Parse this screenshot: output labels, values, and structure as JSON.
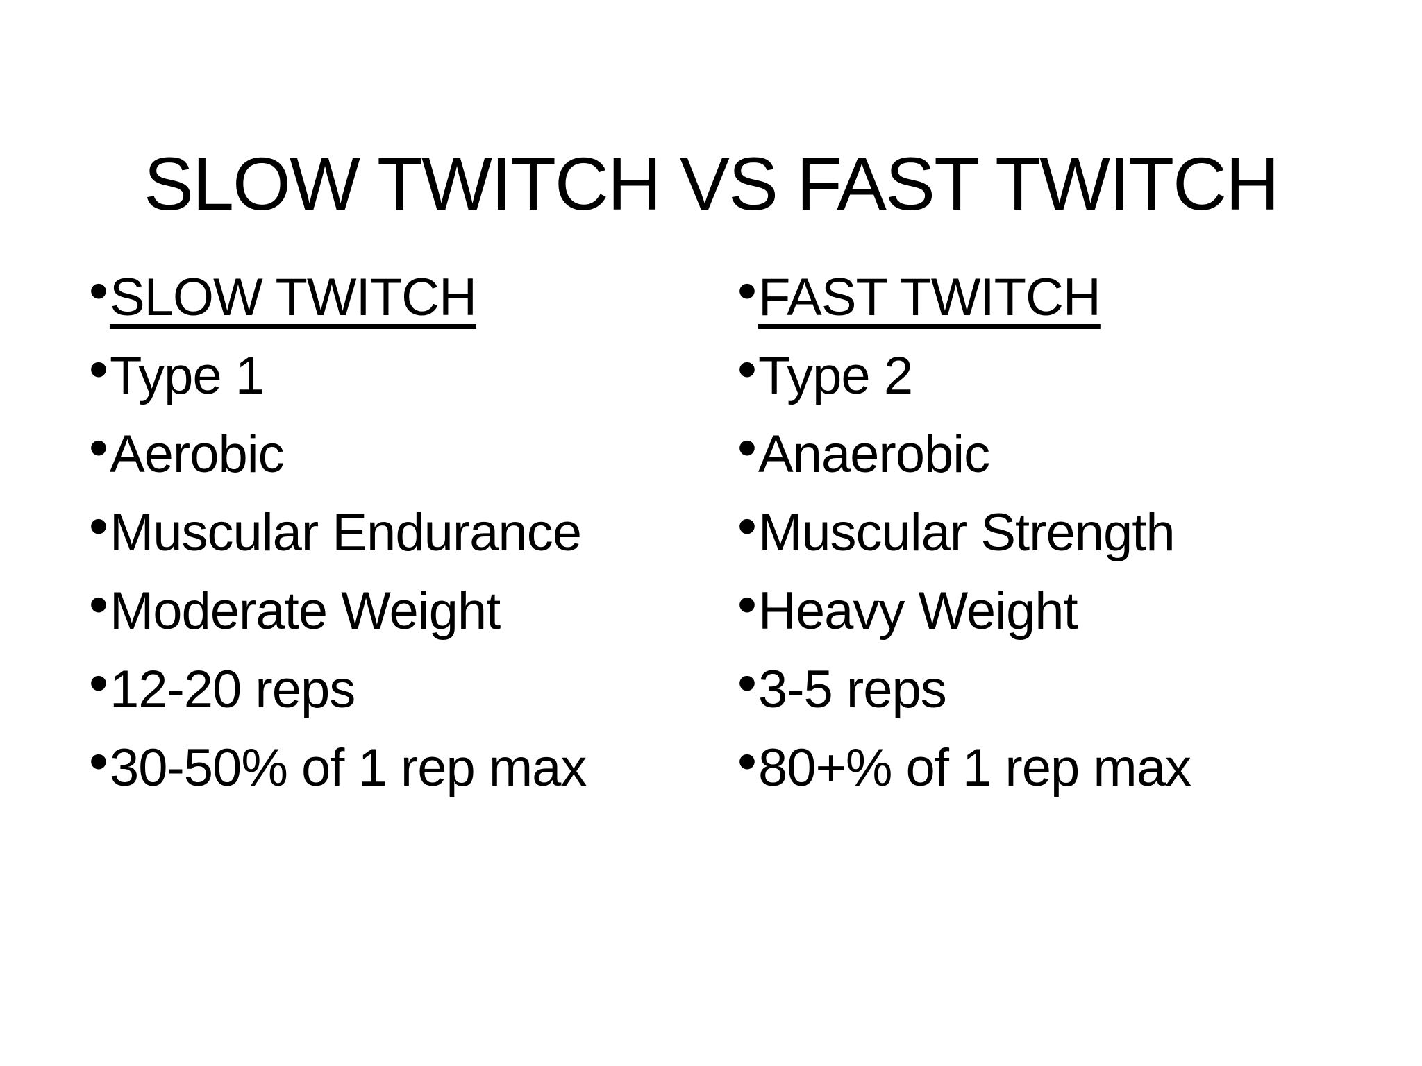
{
  "slide": {
    "title": "SLOW TWITCH VS FAST TWITCH",
    "bullet_char": "•",
    "colors": {
      "background": "#ffffff",
      "text": "#000000"
    },
    "columns": [
      {
        "header": "SLOW TWITCH",
        "items": [
          "Type 1",
          "Aerobic",
          "Muscular Endurance",
          "Moderate Weight",
          "12-20 reps",
          "30-50% of 1 rep max"
        ]
      },
      {
        "header": "FAST TWITCH",
        "items": [
          "Type 2",
          "Anaerobic",
          "Muscular Strength",
          "Heavy Weight",
          "3-5 reps",
          "80+% of 1 rep max"
        ]
      }
    ]
  }
}
